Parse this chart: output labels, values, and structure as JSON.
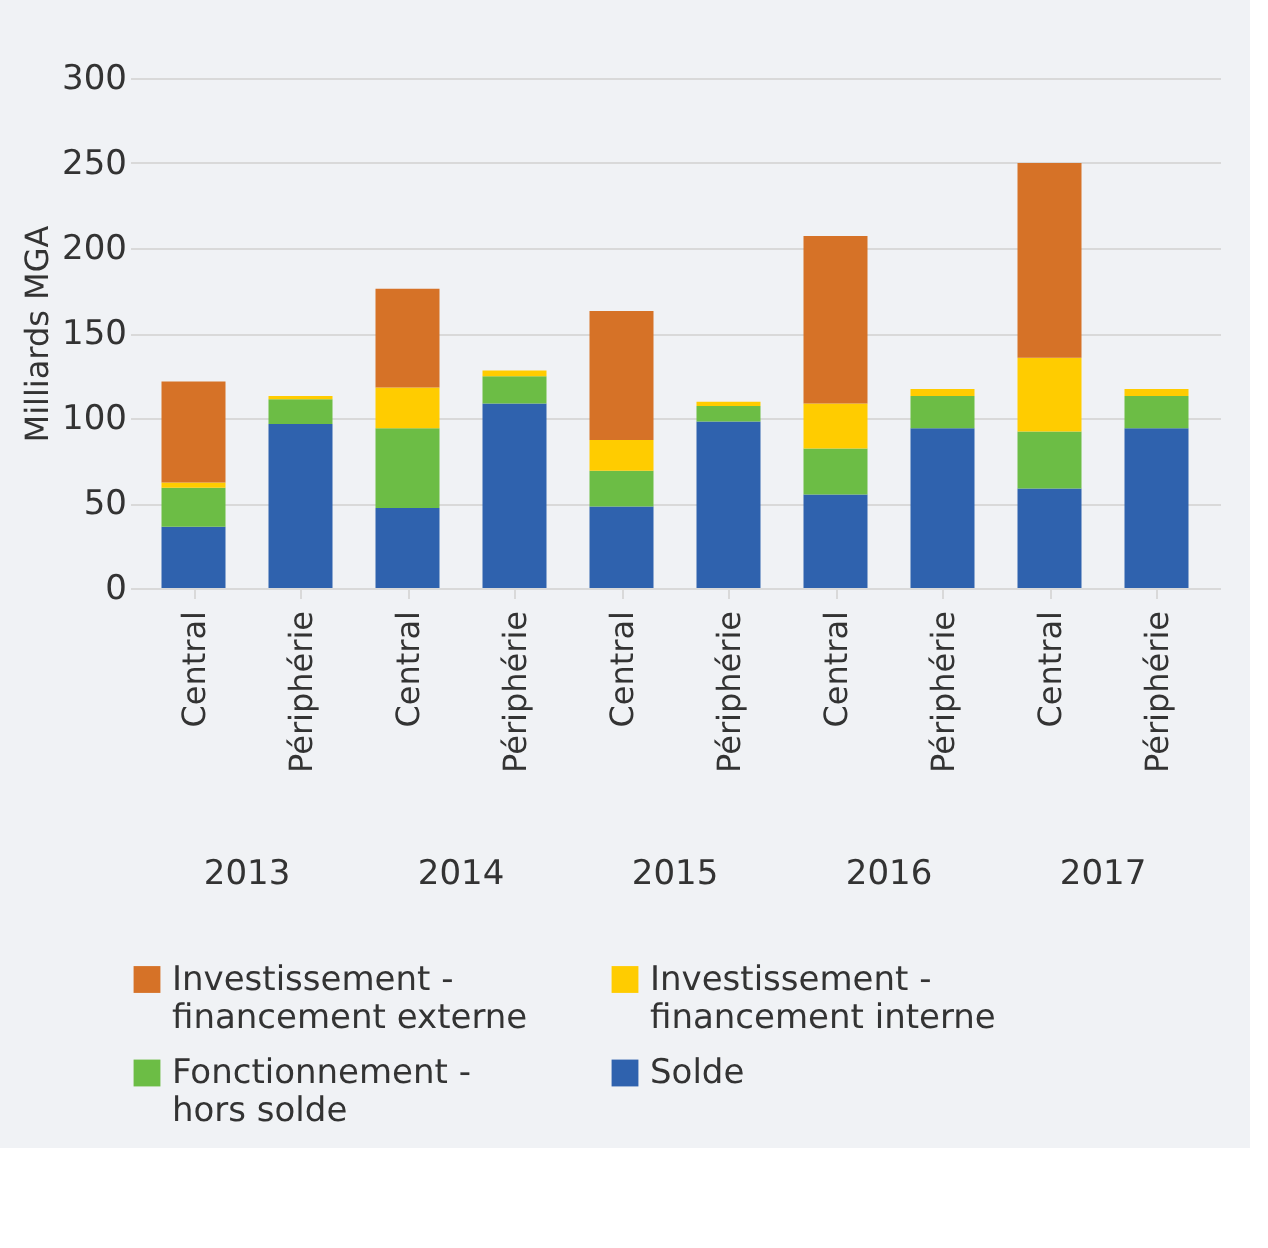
{
  "chart_data": {
    "type": "bar",
    "stacked": true,
    "ylabel": "Milliards MGA",
    "categories": [
      "Central",
      "Périphérie",
      "Central",
      "Périphérie",
      "Central",
      "Périphérie",
      "Central",
      "Périphérie",
      "Central",
      "Périphérie"
    ],
    "annotations": [
      "2013",
      "2014",
      "2015",
      "2016",
      "2017"
    ],
    "series": [
      {
        "name": "Solde",
        "color": "#2f62ae",
        "values": [
          36,
          96.5,
          47,
          108.5,
          48,
          98,
          55,
          94,
          58.5,
          94
        ]
      },
      {
        "name": "Fonctionnement - hors solde",
        "color": "#6cbd45",
        "values": [
          23,
          14.5,
          47,
          16,
          21,
          9,
          27,
          19,
          33.5,
          19
        ]
      },
      {
        "name": "Investissement - financement interne",
        "color": "#ffcc00",
        "values": [
          3,
          2,
          24,
          3.5,
          18,
          2.5,
          26.5,
          4,
          43.5,
          4
        ]
      },
      {
        "name": "Investissement - financement externe",
        "color": "#d67227",
        "values": [
          59.5,
          0,
          58,
          0,
          76,
          0,
          98.5,
          0,
          114.5,
          0
        ]
      }
    ],
    "ylim": [
      0,
      300
    ],
    "yticks": [
      0,
      50,
      100,
      150,
      200,
      250,
      300
    ],
    "grid": "y",
    "legend": "bottom"
  }
}
